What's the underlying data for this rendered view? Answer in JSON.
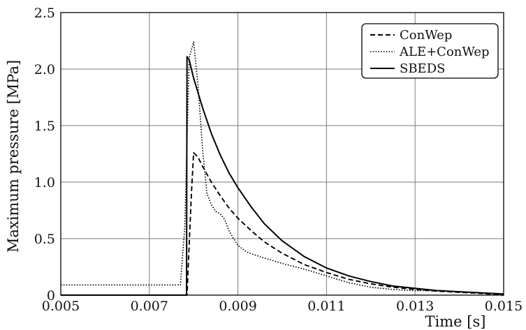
{
  "chart_data": {
    "type": "line",
    "title": "",
    "xlabel": "Time [s]",
    "ylabel": "Maximum pressure [MPa]",
    "xlim": [
      0.005,
      0.015
    ],
    "ylim": [
      0,
      2.5
    ],
    "x_ticks": [
      0.005,
      0.007,
      0.009,
      0.011,
      0.013,
      0.015
    ],
    "x_tick_labels": [
      "0.005",
      "0.007",
      "0.009",
      "0.011",
      "0.013",
      "0.015"
    ],
    "y_ticks": [
      0,
      0.5,
      1.0,
      1.5,
      2.0,
      2.5
    ],
    "y_tick_labels": [
      "0",
      "0.5",
      "1.0",
      "1.5",
      "2.0",
      "2.5"
    ],
    "grid": true,
    "legend_position": "top-right",
    "series": [
      {
        "name": "ConWep",
        "style": "dashed",
        "color": "#000000",
        "x": [
          0.005,
          0.0078,
          0.00785,
          0.00795,
          0.008,
          0.0081,
          0.0082,
          0.0084,
          0.0086,
          0.0088,
          0.009,
          0.0093,
          0.0096,
          0.01,
          0.0105,
          0.011,
          0.0115,
          0.012,
          0.0125,
          0.013,
          0.0135,
          0.014,
          0.0145,
          0.015
        ],
        "y": [
          0,
          0,
          0,
          0.9,
          1.26,
          1.22,
          1.14,
          1.0,
          0.88,
          0.77,
          0.68,
          0.57,
          0.47,
          0.37,
          0.27,
          0.2,
          0.14,
          0.1,
          0.07,
          0.05,
          0.035,
          0.025,
          0.015,
          0.0
        ]
      },
      {
        "name": "ALE+ConWep",
        "style": "dotted",
        "color": "#000000",
        "x": [
          0.005,
          0.0077,
          0.0078,
          0.0079,
          0.008,
          0.0081,
          0.0082,
          0.0083,
          0.0084,
          0.0085,
          0.0086,
          0.0087,
          0.0088,
          0.0089,
          0.009,
          0.0092,
          0.0095,
          0.01,
          0.0105,
          0.011,
          0.0115,
          0.012,
          0.0125,
          0.013,
          0.0137
        ],
        "y": [
          0.09,
          0.09,
          0.6,
          2.1,
          2.24,
          1.85,
          1.3,
          0.9,
          0.8,
          0.74,
          0.72,
          0.67,
          0.57,
          0.5,
          0.44,
          0.38,
          0.34,
          0.28,
          0.23,
          0.17,
          0.11,
          0.07,
          0.05,
          0.04,
          0.04
        ]
      },
      {
        "name": "SBEDS",
        "style": "solid",
        "color": "#000000",
        "x": [
          0.005,
          0.00784,
          0.00785,
          0.0079,
          0.008,
          0.0082,
          0.0084,
          0.0086,
          0.0088,
          0.009,
          0.0093,
          0.0096,
          0.01,
          0.0105,
          0.011,
          0.0115,
          0.012,
          0.0125,
          0.013,
          0.0135,
          0.014,
          0.0145,
          0.015
        ],
        "y": [
          0,
          0,
          2.11,
          2.08,
          1.92,
          1.66,
          1.43,
          1.24,
          1.08,
          0.95,
          0.78,
          0.63,
          0.48,
          0.34,
          0.24,
          0.17,
          0.12,
          0.08,
          0.06,
          0.04,
          0.03,
          0.02,
          0.01
        ]
      }
    ]
  }
}
